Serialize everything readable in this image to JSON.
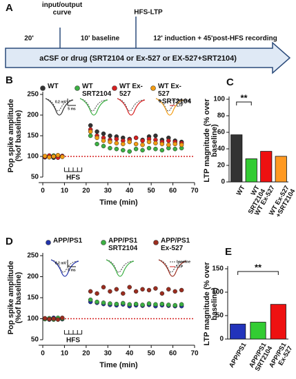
{
  "timeline": {
    "panel": "A",
    "pre": "20'",
    "io_curve": "input/output curve",
    "baseline": "10' baseline",
    "hfs": "HFS-LTP",
    "post": "12' induction + 45'post-HFS recording",
    "treatment": "aCSF or drug (SRT2104 or Ex-527 or EX-527+SRT2104)"
  },
  "chart_data": [
    {
      "type": "scatter",
      "panel": "B",
      "xlabel": "Time (min)",
      "ylabel": "Pop spike amplitude (%of baseline)",
      "x": [
        1,
        3,
        5,
        7,
        9,
        22,
        25,
        28,
        31,
        34,
        37,
        40,
        43,
        46,
        49,
        52,
        55,
        58,
        61,
        64
      ],
      "xlim": [
        0,
        70
      ],
      "xticks": [
        0,
        10,
        20,
        30,
        40,
        50,
        60,
        70
      ],
      "ylim": [
        50,
        250
      ],
      "yticks": [
        50,
        100,
        150,
        200,
        250
      ],
      "hline": 100,
      "hline_color": "#d62020",
      "annotation": "HFS",
      "hfs_window": [
        10,
        18
      ],
      "inset_legend": [
        "baseline",
        "LTP"
      ],
      "scale_bar": [
        "0.2 mV",
        "5 ms"
      ],
      "series": [
        {
          "name": "WT",
          "color": "#333333",
          "values": [
            98,
            101,
            97,
            102,
            100,
            175,
            160,
            155,
            150,
            148,
            145,
            142,
            145,
            140,
            148,
            150,
            140,
            145,
            138,
            135
          ]
        },
        {
          "name": "WT SRT2104",
          "color": "#3cb043",
          "values": [
            100,
            99,
            102,
            98,
            101,
            150,
            130,
            125,
            120,
            118,
            115,
            112,
            118,
            115,
            120,
            118,
            115,
            120,
            118,
            120
          ]
        },
        {
          "name": "WT Ex-527",
          "color": "#d62020",
          "values": [
            99,
            102,
            100,
            97,
            101,
            165,
            150,
            145,
            140,
            142,
            138,
            140,
            145,
            138,
            142,
            140,
            135,
            138,
            135,
            132
          ]
        },
        {
          "name": "WT Ex-527 +SRT2104",
          "color": "#f39c12",
          "values": [
            101,
            98,
            100,
            103,
            99,
            160,
            145,
            138,
            135,
            132,
            130,
            135,
            130,
            128,
            135,
            132,
            130,
            128,
            130,
            128
          ]
        }
      ]
    },
    {
      "type": "bar",
      "panel": "C",
      "ylabel": "LTP magnitude (% over baseline)",
      "categories": [
        "WT",
        "WT SRT2104",
        "WT Ex-527",
        "WT Ex-527 +SRT2104"
      ],
      "values": [
        57,
        28,
        37,
        31
      ],
      "colors": [
        "#333333",
        "#33cc33",
        "#ee1111",
        "#ff9922"
      ],
      "ylim": [
        0,
        100
      ],
      "yticks": [
        0,
        20,
        40,
        60,
        80,
        100
      ],
      "significance": {
        "label": "**",
        "between": [
          0,
          1
        ]
      }
    },
    {
      "type": "scatter",
      "panel": "D",
      "xlabel": "Time (min)",
      "ylabel": "Pop spike amplitude (%of baseline)",
      "x": [
        1,
        3,
        5,
        7,
        9,
        22,
        25,
        28,
        31,
        34,
        37,
        40,
        43,
        46,
        49,
        52,
        55,
        58,
        61,
        64
      ],
      "xlim": [
        0,
        70
      ],
      "xticks": [
        0,
        10,
        20,
        30,
        40,
        50,
        60,
        70
      ],
      "ylim": [
        50,
        250
      ],
      "yticks": [
        50,
        100,
        150,
        200,
        250
      ],
      "hline": 100,
      "hline_color": "#d62020",
      "annotation": "HFS",
      "hfs_window": [
        10,
        18
      ],
      "inset_legend": [
        "baseline",
        "LTP"
      ],
      "scale_bar": [
        "0.2 mV",
        "5 ms"
      ],
      "series": [
        {
          "name": "APP/PS1",
          "color": "#2233aa",
          "values": [
            100,
            98,
            102,
            100,
            99,
            140,
            138,
            135,
            133,
            132,
            134,
            130,
            132,
            131,
            133,
            130,
            132,
            131,
            130,
            130
          ]
        },
        {
          "name": "APP/PS1 SRT2104",
          "color": "#3cb043",
          "values": [
            99,
            101,
            98,
            102,
            100,
            145,
            140,
            138,
            136,
            135,
            137,
            134,
            135,
            133,
            136,
            134,
            135,
            133,
            132,
            134
          ]
        },
        {
          "name": "APP/PS1 Ex-527",
          "color": "#9b2d1f",
          "values": [
            101,
            99,
            100,
            98,
            102,
            165,
            160,
            175,
            165,
            170,
            160,
            175,
            165,
            170,
            168,
            172,
            160,
            170,
            165,
            168
          ]
        }
      ]
    },
    {
      "type": "bar",
      "panel": "E",
      "ylabel": "LTP magnitude (% over baseline)",
      "categories": [
        "APP/PS1",
        "APP/PS1 SRT2104",
        "APP/PS1 Ex-527"
      ],
      "values": [
        32,
        36,
        74
      ],
      "colors": [
        "#2233bb",
        "#33cc33",
        "#ee1111"
      ],
      "ylim": [
        0,
        150
      ],
      "yticks": [
        0,
        50,
        100,
        150
      ],
      "significance": {
        "label": "**",
        "between": [
          0,
          2
        ]
      }
    }
  ]
}
